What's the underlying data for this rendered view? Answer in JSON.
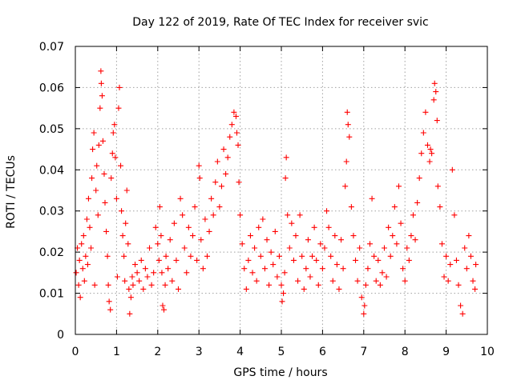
{
  "chart_data": {
    "type": "scatter",
    "title": "Day 122 of 2019, Rate Of TEC Index for receiver svic",
    "xlabel": "GPS time / hours",
    "ylabel": "ROTI / TECUs",
    "xlim": [
      0,
      10
    ],
    "ylim": [
      0,
      0.07
    ],
    "xticks": [
      0,
      1,
      2,
      3,
      4,
      5,
      6,
      7,
      8,
      9,
      10
    ],
    "yticks": [
      0,
      0.01,
      0.02,
      0.03,
      0.04,
      0.05,
      0.06,
      0.07
    ],
    "xtick_labels": [
      "0",
      "1",
      "2",
      "3",
      "4",
      "5",
      "6",
      "7",
      "8",
      "9",
      "10"
    ],
    "ytick_labels": [
      "0",
      "0.01",
      "0.02",
      "0.03",
      "0.04",
      "0.05",
      "0.06",
      "0.07"
    ],
    "grid": true,
    "marker": "+",
    "color": "#ff0000",
    "series": [
      {
        "name": "ROTI",
        "points": [
          [
            0.02,
            0.015
          ],
          [
            0.05,
            0.021
          ],
          [
            0.08,
            0.012
          ],
          [
            0.1,
            0.018
          ],
          [
            0.12,
            0.009
          ],
          [
            0.15,
            0.022
          ],
          [
            0.18,
            0.016
          ],
          [
            0.2,
            0.024
          ],
          [
            0.22,
            0.013
          ],
          [
            0.25,
            0.019
          ],
          [
            0.28,
            0.028
          ],
          [
            0.3,
            0.017
          ],
          [
            0.32,
            0.033
          ],
          [
            0.35,
            0.026
          ],
          [
            0.38,
            0.021
          ],
          [
            0.4,
            0.038
          ],
          [
            0.42,
            0.045
          ],
          [
            0.45,
            0.049
          ],
          [
            0.47,
            0.012
          ],
          [
            0.5,
            0.035
          ],
          [
            0.52,
            0.041
          ],
          [
            0.55,
            0.029
          ],
          [
            0.57,
            0.046
          ],
          [
            0.6,
            0.055
          ],
          [
            0.62,
            0.064
          ],
          [
            0.63,
            0.061
          ],
          [
            0.65,
            0.058
          ],
          [
            0.67,
            0.047
          ],
          [
            0.7,
            0.039
          ],
          [
            0.72,
            0.032
          ],
          [
            0.75,
            0.025
          ],
          [
            0.78,
            0.019
          ],
          [
            0.8,
            0.012
          ],
          [
            0.82,
            0.008
          ],
          [
            0.85,
            0.006
          ],
          [
            0.87,
            0.038
          ],
          [
            0.9,
            0.044
          ],
          [
            0.92,
            0.049
          ],
          [
            0.95,
            0.051
          ],
          [
            0.97,
            0.043
          ],
          [
            1.0,
            0.033
          ],
          [
            1.02,
            0.014
          ],
          [
            1.05,
            0.055
          ],
          [
            1.07,
            0.06
          ],
          [
            1.1,
            0.041
          ],
          [
            1.12,
            0.03
          ],
          [
            1.15,
            0.024
          ],
          [
            1.18,
            0.019
          ],
          [
            1.2,
            0.013
          ],
          [
            1.22,
            0.027
          ],
          [
            1.25,
            0.035
          ],
          [
            1.28,
            0.022
          ],
          [
            1.3,
            0.011
          ],
          [
            1.32,
            0.005
          ],
          [
            1.35,
            0.009
          ],
          [
            1.38,
            0.014
          ],
          [
            1.4,
            0.012
          ],
          [
            1.45,
            0.017
          ],
          [
            1.5,
            0.015
          ],
          [
            1.55,
            0.013
          ],
          [
            1.6,
            0.018
          ],
          [
            1.65,
            0.011
          ],
          [
            1.7,
            0.016
          ],
          [
            1.75,
            0.014
          ],
          [
            1.8,
            0.021
          ],
          [
            1.85,
            0.012
          ],
          [
            1.9,
            0.015
          ],
          [
            1.95,
            0.026
          ],
          [
            2.0,
            0.022
          ],
          [
            2.03,
            0.018
          ],
          [
            2.05,
            0.031
          ],
          [
            2.08,
            0.024
          ],
          [
            2.1,
            0.015
          ],
          [
            2.12,
            0.007
          ],
          [
            2.15,
            0.006
          ],
          [
            2.18,
            0.012
          ],
          [
            2.2,
            0.019
          ],
          [
            2.25,
            0.016
          ],
          [
            2.3,
            0.023
          ],
          [
            2.35,
            0.013
          ],
          [
            2.4,
            0.027
          ],
          [
            2.45,
            0.018
          ],
          [
            2.5,
            0.011
          ],
          [
            2.55,
            0.033
          ],
          [
            2.6,
            0.029
          ],
          [
            2.65,
            0.021
          ],
          [
            2.7,
            0.015
          ],
          [
            2.75,
            0.026
          ],
          [
            2.8,
            0.019
          ],
          [
            2.85,
            0.024
          ],
          [
            2.9,
            0.031
          ],
          [
            2.95,
            0.018
          ],
          [
            3.0,
            0.041
          ],
          [
            3.02,
            0.038
          ],
          [
            3.05,
            0.023
          ],
          [
            3.1,
            0.016
          ],
          [
            3.15,
            0.028
          ],
          [
            3.2,
            0.019
          ],
          [
            3.25,
            0.025
          ],
          [
            3.3,
            0.033
          ],
          [
            3.35,
            0.029
          ],
          [
            3.4,
            0.037
          ],
          [
            3.45,
            0.042
          ],
          [
            3.5,
            0.031
          ],
          [
            3.55,
            0.036
          ],
          [
            3.6,
            0.045
          ],
          [
            3.65,
            0.039
          ],
          [
            3.7,
            0.043
          ],
          [
            3.75,
            0.048
          ],
          [
            3.8,
            0.051
          ],
          [
            3.85,
            0.054
          ],
          [
            3.9,
            0.053
          ],
          [
            3.92,
            0.049
          ],
          [
            3.95,
            0.046
          ],
          [
            3.97,
            0.037
          ],
          [
            4.0,
            0.029
          ],
          [
            4.05,
            0.022
          ],
          [
            4.1,
            0.016
          ],
          [
            4.15,
            0.011
          ],
          [
            4.2,
            0.018
          ],
          [
            4.25,
            0.024
          ],
          [
            4.3,
            0.015
          ],
          [
            4.35,
            0.021
          ],
          [
            4.4,
            0.013
          ],
          [
            4.45,
            0.026
          ],
          [
            4.5,
            0.019
          ],
          [
            4.55,
            0.028
          ],
          [
            4.6,
            0.016
          ],
          [
            4.65,
            0.023
          ],
          [
            4.7,
            0.012
          ],
          [
            4.75,
            0.02
          ],
          [
            4.8,
            0.017
          ],
          [
            4.85,
            0.025
          ],
          [
            4.9,
            0.014
          ],
          [
            4.95,
            0.019
          ],
          [
            5.0,
            0.012
          ],
          [
            5.02,
            0.008
          ],
          [
            5.05,
            0.01
          ],
          [
            5.08,
            0.015
          ],
          [
            5.1,
            0.038
          ],
          [
            5.12,
            0.043
          ],
          [
            5.15,
            0.029
          ],
          [
            5.2,
            0.021
          ],
          [
            5.25,
            0.027
          ],
          [
            5.3,
            0.018
          ],
          [
            5.35,
            0.024
          ],
          [
            5.4,
            0.013
          ],
          [
            5.45,
            0.029
          ],
          [
            5.5,
            0.019
          ],
          [
            5.55,
            0.011
          ],
          [
            5.6,
            0.016
          ],
          [
            5.65,
            0.023
          ],
          [
            5.7,
            0.014
          ],
          [
            5.75,
            0.019
          ],
          [
            5.8,
            0.026
          ],
          [
            5.85,
            0.018
          ],
          [
            5.9,
            0.012
          ],
          [
            5.95,
            0.022
          ],
          [
            6.0,
            0.016
          ],
          [
            6.05,
            0.021
          ],
          [
            6.1,
            0.03
          ],
          [
            6.15,
            0.026
          ],
          [
            6.2,
            0.019
          ],
          [
            6.25,
            0.013
          ],
          [
            6.3,
            0.024
          ],
          [
            6.35,
            0.017
          ],
          [
            6.4,
            0.011
          ],
          [
            6.45,
            0.023
          ],
          [
            6.5,
            0.016
          ],
          [
            6.55,
            0.036
          ],
          [
            6.58,
            0.042
          ],
          [
            6.6,
            0.054
          ],
          [
            6.62,
            0.051
          ],
          [
            6.65,
            0.048
          ],
          [
            6.7,
            0.031
          ],
          [
            6.75,
            0.024
          ],
          [
            6.8,
            0.018
          ],
          [
            6.85,
            0.013
          ],
          [
            6.9,
            0.021
          ],
          [
            6.95,
            0.009
          ],
          [
            7.0,
            0.005
          ],
          [
            7.02,
            0.007
          ],
          [
            7.05,
            0.012
          ],
          [
            7.1,
            0.016
          ],
          [
            7.15,
            0.022
          ],
          [
            7.2,
            0.033
          ],
          [
            7.25,
            0.019
          ],
          [
            7.3,
            0.013
          ],
          [
            7.35,
            0.018
          ],
          [
            7.4,
            0.012
          ],
          [
            7.45,
            0.015
          ],
          [
            7.5,
            0.021
          ],
          [
            7.55,
            0.014
          ],
          [
            7.6,
            0.026
          ],
          [
            7.65,
            0.019
          ],
          [
            7.7,
            0.024
          ],
          [
            7.75,
            0.031
          ],
          [
            7.8,
            0.022
          ],
          [
            7.85,
            0.036
          ],
          [
            7.9,
            0.027
          ],
          [
            7.95,
            0.016
          ],
          [
            8.0,
            0.013
          ],
          [
            8.05,
            0.021
          ],
          [
            8.1,
            0.018
          ],
          [
            8.15,
            0.024
          ],
          [
            8.2,
            0.029
          ],
          [
            8.25,
            0.023
          ],
          [
            8.3,
            0.032
          ],
          [
            8.35,
            0.038
          ],
          [
            8.4,
            0.044
          ],
          [
            8.45,
            0.049
          ],
          [
            8.5,
            0.054
          ],
          [
            8.55,
            0.046
          ],
          [
            8.6,
            0.042
          ],
          [
            8.62,
            0.045
          ],
          [
            8.65,
            0.044
          ],
          [
            8.7,
            0.057
          ],
          [
            8.72,
            0.061
          ],
          [
            8.75,
            0.059
          ],
          [
            8.78,
            0.052
          ],
          [
            8.8,
            0.036
          ],
          [
            8.85,
            0.031
          ],
          [
            8.9,
            0.022
          ],
          [
            8.95,
            0.014
          ],
          [
            9.0,
            0.019
          ],
          [
            9.05,
            0.013
          ],
          [
            9.1,
            0.017
          ],
          [
            9.15,
            0.04
          ],
          [
            9.2,
            0.029
          ],
          [
            9.25,
            0.018
          ],
          [
            9.3,
            0.012
          ],
          [
            9.35,
            0.007
          ],
          [
            9.4,
            0.005
          ],
          [
            9.45,
            0.021
          ],
          [
            9.5,
            0.016
          ],
          [
            9.55,
            0.024
          ],
          [
            9.6,
            0.019
          ],
          [
            9.65,
            0.013
          ],
          [
            9.7,
            0.011
          ],
          [
            9.72,
            0.017
          ]
        ]
      }
    ]
  }
}
